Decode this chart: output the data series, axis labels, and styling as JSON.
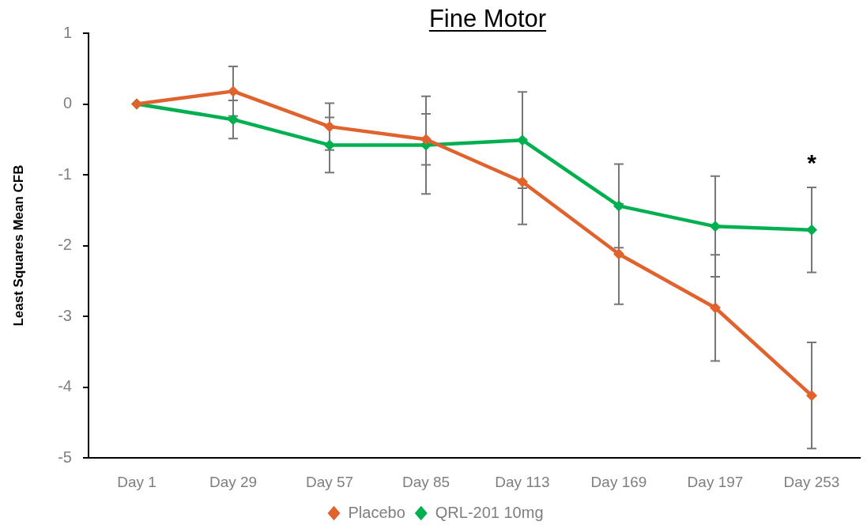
{
  "chart_data": {
    "type": "line",
    "title": "Fine Motor",
    "ylabel": "Least Squares Mean CFB",
    "categories": [
      "Day 1",
      "Day 29",
      "Day 57",
      "Day 85",
      "Day 113",
      "Day 169",
      "Day 197",
      "Day 253"
    ],
    "series": [
      {
        "name": "Placebo",
        "color": "#e0622d",
        "values": [
          0,
          0.18,
          -0.32,
          -0.5,
          -1.1,
          -2.12,
          -2.88,
          -4.12
        ],
        "errors": [
          null,
          0.35,
          0.33,
          0.36,
          0.6,
          0.71,
          0.75,
          0.75
        ]
      },
      {
        "name": "QRL-201 10mg",
        "color": "#00b050",
        "values": [
          0,
          -0.22,
          -0.58,
          -0.58,
          -0.51,
          -1.44,
          -1.73,
          -1.78
        ],
        "errors": [
          null,
          0.27,
          0.39,
          0.69,
          0.68,
          0.59,
          0.71,
          0.6
        ]
      }
    ],
    "ylim": [
      -5,
      1
    ],
    "yticks": [
      -5,
      -4,
      -3,
      -2,
      -1,
      0,
      1
    ],
    "legend": "bottom",
    "marker": "diamond",
    "line_style": "solid",
    "annotations": [
      {
        "text": "*",
        "x": "Day 253",
        "y": -1.78
      }
    ]
  }
}
